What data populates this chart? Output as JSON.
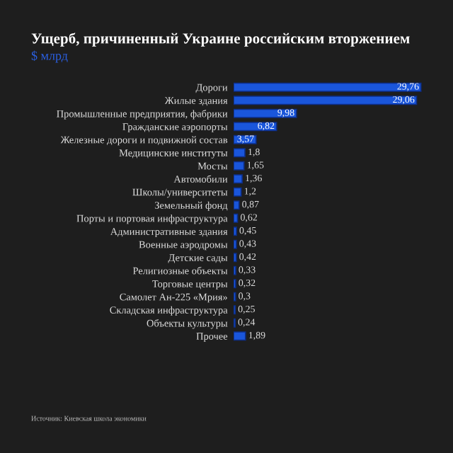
{
  "chart_data": {
    "type": "bar",
    "orientation": "horizontal",
    "title": "Ущерб, причиненный Украине российским вторжением",
    "subtitle": "$ млрд",
    "categories": [
      "Дороги",
      "Жилые здания",
      "Промышленные предприятия, фабрики",
      "Гражданские аэропорты",
      "Железные дороги и подвижной состав",
      "Медицинские институты",
      "Мосты",
      "Автомобили",
      "Школы/университеты",
      "Земельный фонд",
      "Порты и портовая инфраструктура",
      "Административные здания",
      "Военные аэродромы",
      "Детские сады",
      "Религиозные объекты",
      "Торговые центры",
      "Самолет Ан-225 «Мрия»",
      "Складская инфраструктура",
      "Объекты культуры",
      "Прочее"
    ],
    "values": [
      29.76,
      29.06,
      9.98,
      6.82,
      3.57,
      1.8,
      1.65,
      1.36,
      1.2,
      0.87,
      0.62,
      0.45,
      0.43,
      0.42,
      0.33,
      0.32,
      0.3,
      0.25,
      0.24,
      1.89
    ],
    "value_labels": [
      "29,76",
      "29,06",
      "9,98",
      "6,82",
      "3,57",
      "1,8",
      "1,65",
      "1,36",
      "1,2",
      "0,87",
      "0,62",
      "0,45",
      "0,43",
      "0,42",
      "0,33",
      "0,32",
      "0,3",
      "0,25",
      "0,24",
      "1,89"
    ],
    "color": "#1a56db",
    "annotations": [
      "Источник: Киевская школа экономики"
    ],
    "grid": false,
    "legend": false
  }
}
